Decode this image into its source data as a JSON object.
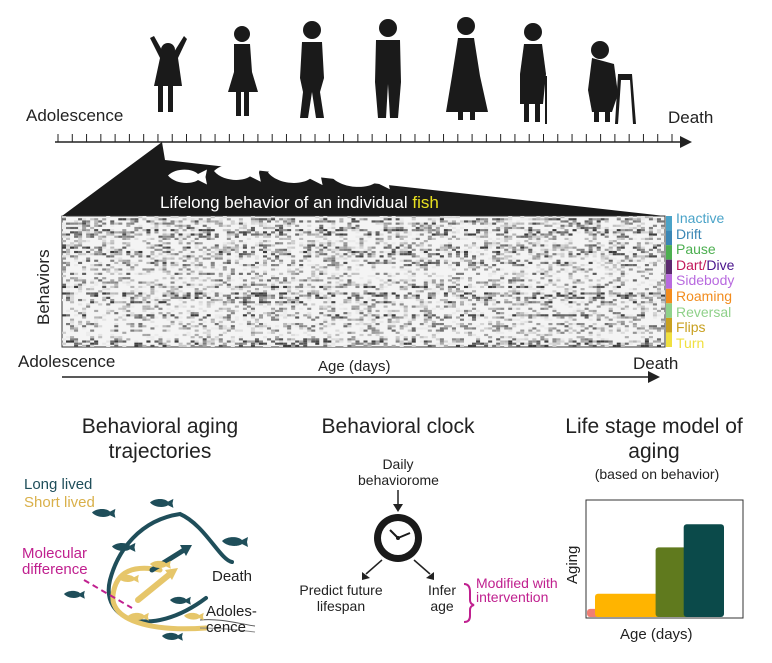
{
  "timeline": {
    "start_label": "Adolescence",
    "end_label": "Death",
    "tick_count": 44
  },
  "fish_banner": {
    "text": "Lifelong behavior of an individual ",
    "highlight": "fish",
    "highlight_color": "#e8e020"
  },
  "heatmap": {
    "y_label": "Behaviors",
    "x_label": "Age (days)",
    "start_label": "Adolescence",
    "end_label": "Death"
  },
  "behaviors": [
    {
      "label": "Inactive",
      "color": "#4aa3c8"
    },
    {
      "label": "Drift",
      "color": "#3a86b5"
    },
    {
      "label": "Pause",
      "color": "#4caf50"
    },
    {
      "label": "Dart/Dive",
      "color": "#5b2a6e",
      "label_first": "Dart/",
      "label_second": "Dive",
      "color_first": "#c2185b",
      "color_second": "#4a148c"
    },
    {
      "label": "Sidebody",
      "color": "#b86adf"
    },
    {
      "label": "Roaming",
      "color": "#f28c1e"
    },
    {
      "label": "Reversal",
      "color": "#8fd18a"
    },
    {
      "label": "Flips",
      "color": "#c8a020"
    },
    {
      "label": "Turn",
      "color": "#f0e040"
    }
  ],
  "trajectories": {
    "title": "Behavioral aging trajectories",
    "long_lived": "Long lived",
    "short_lived": "Short lived",
    "long_color": "#1f4e5a",
    "short_color": "#e6c66a",
    "molecular": "Molecular difference",
    "molecular_color": "#c0208f",
    "death": "Death",
    "adolescence": "Adoles- cence"
  },
  "clock": {
    "title": "Behavioral clock",
    "input": "Daily behaviorome",
    "predict": "Predict future lifespan",
    "infer": "Infer age",
    "modified": "Modified with intervention",
    "modified_color": "#c0208f"
  },
  "life_stage": {
    "title": "Life stage model of aging",
    "subtitle": "(based on behavior)",
    "y_label": "Aging",
    "x_label": "Age (days)",
    "stages": [
      {
        "color": "#f07e73",
        "level": 0.07,
        "width": 0.09
      },
      {
        "color": "#ffb400",
        "level": 0.2,
        "width": 0.43
      },
      {
        "color": "#607a1e",
        "level": 0.6,
        "width": 0.22
      },
      {
        "color": "#0b4a4a",
        "level": 0.8,
        "width": 0.26
      }
    ]
  }
}
